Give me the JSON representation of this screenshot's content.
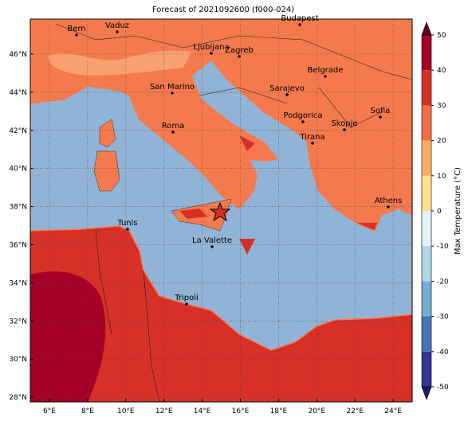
{
  "title": "Forecast of 2021092600 (f000-024)",
  "map": {
    "lon_ticks": [
      "6°E",
      "8°E",
      "10°E",
      "12°E",
      "14°E",
      "16°E",
      "18°E",
      "20°E",
      "22°E",
      "24°E"
    ],
    "lat_ticks": [
      "46°N",
      "44°N",
      "42°N",
      "40°N",
      "38°N",
      "36°N",
      "34°N",
      "32°N",
      "30°N",
      "28°N"
    ],
    "cities": [
      "Bern",
      "Vaduz",
      "Budapest",
      "Ljubljana",
      "Zagreb",
      "Belgrade",
      "San Marino",
      "Sarajevo",
      "Sofia",
      "Roma",
      "Podgorica",
      "Skopje",
      "Tirana",
      "Tunis",
      "Athens",
      "La Valette",
      "Tripoli"
    ]
  },
  "colorbar": {
    "label": "Max Temperature (°C)",
    "limits": [
      -50,
      50
    ],
    "ticks": [
      50,
      40,
      30,
      20,
      10,
      0,
      -10,
      -20,
      -30,
      -40,
      -50
    ],
    "colors": [
      "#313695",
      "#4575b4",
      "#74add1",
      "#abd9e9",
      "#e0f3f8",
      "#fee090",
      "#fdae61",
      "#f46d43",
      "#d73027",
      "#a50026"
    ],
    "extend_colors": [
      "#1a1a6e",
      "#67001f"
    ]
  }
}
